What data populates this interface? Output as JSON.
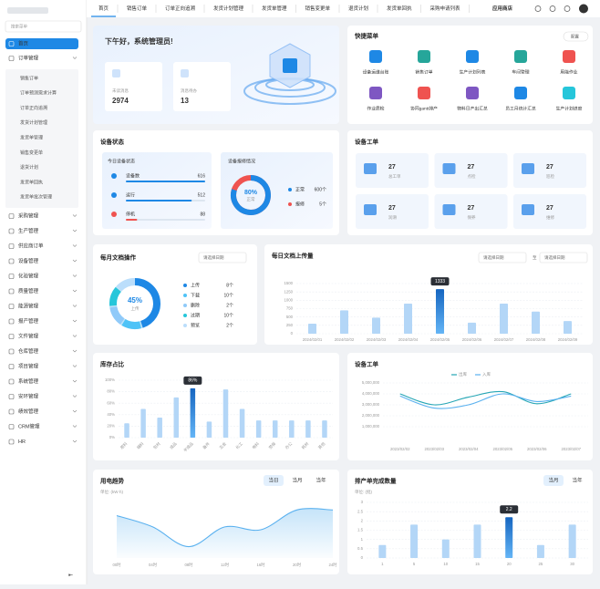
{
  "sidebar": {
    "search": "搜索菜单",
    "items": [
      {
        "label": "首页"
      },
      {
        "label": "订单管理",
        "children": [
          "销售订单",
          "订单预测需求计算",
          "订单正向追溯",
          "发货计划管理",
          "发货单管理",
          "销售变更单",
          "退货计划",
          "发货单回执",
          "发货单批次管理"
        ]
      },
      {
        "label": "采购管理"
      },
      {
        "label": "生产管理"
      },
      {
        "label": "供应商订单"
      },
      {
        "label": "设备管理"
      },
      {
        "label": "化验管理"
      },
      {
        "label": "质量管理"
      },
      {
        "label": "能源管理"
      },
      {
        "label": "报产管理"
      },
      {
        "label": "文件管理"
      },
      {
        "label": "仓库管理"
      },
      {
        "label": "项目管理"
      },
      {
        "label": "系统管理"
      },
      {
        "label": "安环管理"
      },
      {
        "label": "绩效管理"
      },
      {
        "label": "CRM管理"
      },
      {
        "label": "HR"
      }
    ]
  },
  "tabs": [
    "首页",
    "销售订单",
    "订单正向追溯",
    "发货计划管理",
    "发货单管理",
    "销售变更单",
    "退货计划",
    "发货单回执",
    "采购申请列表"
  ],
  "store": "应用商店",
  "welcome": {
    "greeting": "下午好，系统管理员!",
    "stats": [
      {
        "label": "未读消息",
        "value": "2974"
      },
      {
        "label": "消息待办",
        "value": "13"
      }
    ]
  },
  "quick_menu": {
    "title": "快捷菜单",
    "config": "配置",
    "items": [
      "设备运维台账",
      "销售订单",
      "生产计划列表",
      "车间管理",
      "用能作业",
      "作业质检",
      "协同gantt排产",
      "物料日产出汇总",
      "员工月统计汇总",
      "生产计划进度"
    ]
  },
  "device_status": {
    "title": "设备状态",
    "today": {
      "title": "今日设备状态",
      "rows": [
        {
          "label": "设备数",
          "value": 616,
          "color": "#1e88e5"
        },
        {
          "label": "运行",
          "value": 512,
          "color": "#1e88e5"
        },
        {
          "label": "停机",
          "value": 88,
          "color": "#ef5350"
        }
      ]
    },
    "repair": {
      "title": "设备报修情况",
      "percent": 80,
      "percent_label": "80%",
      "caption": "正常",
      "legend": [
        {
          "name": "正常",
          "text": "600个",
          "color": "#1e88e5"
        },
        {
          "name": "报修",
          "text": "5个",
          "color": "#ef5350"
        }
      ]
    }
  },
  "work_orders": {
    "title": "设备工单",
    "cards": [
      {
        "value": "27",
        "label": "总工单"
      },
      {
        "value": "27",
        "label": "点检"
      },
      {
        "value": "27",
        "label": "巡检"
      },
      {
        "value": "27",
        "label": "润滑"
      },
      {
        "value": "27",
        "label": "保养"
      },
      {
        "value": "27",
        "label": "维修"
      }
    ]
  },
  "monthly_docs": {
    "title": "每月文档操作",
    "select": "请选择日期",
    "percent": 45,
    "percent_label": "45%",
    "caption": "上传",
    "legend": [
      {
        "name": "上传",
        "text": "8个",
        "color": "#1e88e5"
      },
      {
        "name": "下载",
        "text": "10个",
        "color": "#4fc3f7"
      },
      {
        "name": "删除",
        "text": "2个",
        "color": "#90caf9"
      },
      {
        "name": "过期",
        "text": "10个",
        "color": "#26c6da"
      },
      {
        "name": "预览",
        "text": "2个",
        "color": "#bbdefb"
      }
    ]
  },
  "chart_data": [
    {
      "type": "bar",
      "title": "每日文档上传量",
      "select_from": "请选择日期",
      "to": "至",
      "select_to": "请选择日期",
      "categories": [
        "2024/02/01",
        "2024/02/02",
        "2024/02/03",
        "2024/02/04",
        "2024/02/05",
        "2024/02/06",
        "2024/02/07",
        "2024/02/08",
        "2024/02/09"
      ],
      "values": [
        300,
        700,
        480,
        900,
        1333,
        330,
        900,
        660,
        380
      ],
      "color": "#b3d6f7",
      "active_color": "#1e88e5",
      "active": 4,
      "ylim": [
        0,
        1500
      ],
      "yticks": [
        0,
        250,
        500,
        750,
        1000,
        1250,
        1500
      ],
      "grid": true
    },
    {
      "type": "bar",
      "title": "库存占比",
      "categories": [
        "原料",
        "辅料",
        "包材",
        "成品",
        "半成品",
        "备件",
        "五金",
        "化工",
        "电料",
        "劳保",
        "办公",
        "耗材",
        "其他"
      ],
      "values": [
        25,
        50,
        35,
        70,
        86,
        28,
        84,
        50,
        30,
        30,
        30,
        30,
        30
      ],
      "value_labels": [
        null,
        null,
        null,
        null,
        "86%",
        null,
        null,
        null,
        null,
        null,
        null,
        null,
        null
      ],
      "color": "#b3d6f7",
      "active_color": "#1e88e5",
      "active": 4,
      "ylim": [
        0,
        100
      ],
      "yticks": [
        {
          "value": 0,
          "label": "0%"
        },
        {
          "value": 20,
          "label": "20%"
        },
        {
          "value": 40,
          "label": "40%"
        },
        {
          "value": 60,
          "label": "60%"
        },
        {
          "value": 80,
          "label": "80%"
        },
        {
          "value": 100,
          "label": "100%"
        }
      ],
      "grid": true
    },
    {
      "type": "line",
      "title": "设备工单",
      "categories": [
        "2023/02/02",
        "2023/02/03",
        "2023/02/04",
        "2023/02/05",
        "2023/02/06",
        "2023/02/07"
      ],
      "series": [
        {
          "name": "出库",
          "color": "#26a6b5",
          "values": [
            4000000,
            3000000,
            3700000,
            4200000,
            3100000,
            4000000
          ]
        },
        {
          "name": "入库",
          "color": "#5ab1ef",
          "values": [
            3800000,
            2700000,
            3000000,
            4000000,
            3300000,
            3800000
          ]
        }
      ],
      "ylim": [
        0,
        5000000
      ],
      "yticks": [
        {
          "value": 1000000,
          "label": "1,000,000"
        },
        {
          "value": 2000000,
          "label": "2,000,000"
        },
        {
          "value": 3000000,
          "label": "3,000,000"
        },
        {
          "value": 4000000,
          "label": "4,000,000"
        },
        {
          "value": 5000000,
          "label": "5,000,000"
        }
      ],
      "grid": true
    },
    {
      "type": "area",
      "title": "用电趋势",
      "tabs": [
        "当日",
        "当月",
        "当年"
      ],
      "unit": "单位: (kW·h)",
      "categories": [
        "00时",
        "04时",
        "08时",
        "12时",
        "16时",
        "20时",
        "24时"
      ],
      "values": [
        0.75,
        0.55,
        0.2,
        0.55,
        0.5,
        0.85,
        0.85
      ],
      "color": "#5ab1ef",
      "ylim": [
        0,
        1
      ]
    },
    {
      "type": "bar",
      "title": "排产单完成数量",
      "tabs": [
        "当月",
        "当年"
      ],
      "unit": "单位: (批)",
      "categories": [
        "1",
        "5",
        "10",
        "15",
        "20",
        "25",
        "30"
      ],
      "values": [
        0.7,
        1.8,
        1.0,
        1.8,
        2.2,
        0.7,
        1.8
      ],
      "color": "#b3d6f7",
      "active_color": "#1e88e5",
      "active": 4,
      "ylim": [
        0,
        3
      ],
      "yticks": [
        0,
        0.5,
        1,
        1.5,
        2,
        2.5,
        3
      ],
      "grid": true
    }
  ]
}
